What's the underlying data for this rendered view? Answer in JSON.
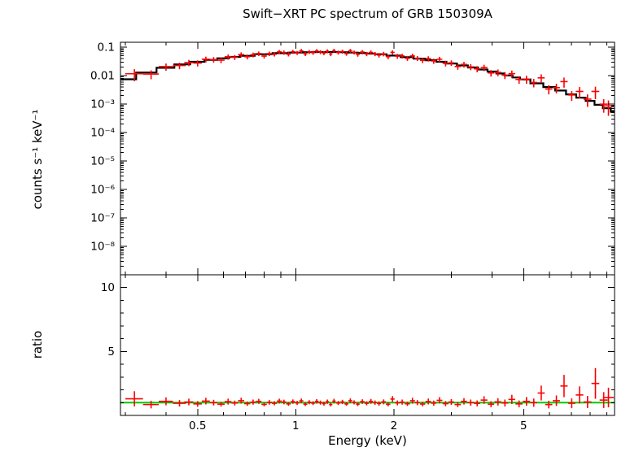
{
  "chart_data": {
    "type": "scatter",
    "title": "Swift−XRT PC spectrum of GRB 150309A",
    "xlabel": "Energy (keV)",
    "ylabel_top": "counts s⁻¹ keV⁻¹",
    "ylabel_bottom": "ratio",
    "xscale": "log",
    "top_yscale": "log",
    "xlim": [
      0.29,
      9.5
    ],
    "top_ylim": [
      1e-09,
      0.15
    ],
    "bottom_ylim": [
      0,
      11
    ],
    "grid": "off",
    "legend": "none",
    "xticks": {
      "values": [
        0.5,
        1,
        2,
        5
      ],
      "labels": [
        "0.5",
        "1",
        "2",
        "5"
      ]
    },
    "top_yticks": {
      "values": [
        0.1,
        0.01,
        0.001,
        0.0001,
        1e-05,
        1e-06,
        1e-07,
        1e-08
      ],
      "labels": [
        "0.1",
        "0.01",
        "10⁻³",
        "10⁻⁴",
        "10⁻⁵",
        "10⁻⁶",
        "10⁻⁷",
        "10⁻⁸"
      ]
    },
    "bottom_yticks": {
      "values": [
        10,
        5
      ],
      "labels": [
        "10",
        "5"
      ]
    },
    "reference_ratio": 1.0,
    "colors": {
      "data": "#ff0000",
      "model": "#000000",
      "reference": "#00cc00",
      "axes": "#000000"
    },
    "columns": [
      "energy_keV",
      "energy_halfwidth_keV",
      "rate_counts_s_keV",
      "rate_err",
      "ratio",
      "ratio_err"
    ],
    "points": [
      [
        0.32,
        0.02,
        0.0117,
        0.0053,
        1.3,
        0.59
      ],
      [
        0.36,
        0.02,
        0.0115,
        0.004,
        0.85,
        0.3
      ],
      [
        0.4,
        0.02,
        0.0209,
        0.0059,
        1.1,
        0.31
      ],
      [
        0.44,
        0.02,
        0.0228,
        0.0059,
        0.95,
        0.25
      ],
      [
        0.47,
        0.015,
        0.0289,
        0.0072,
        1.05,
        0.26
      ],
      [
        0.5,
        0.015,
        0.0279,
        0.0067,
        0.9,
        0.22
      ],
      [
        0.53,
        0.015,
        0.0381,
        0.0088,
        1.12,
        0.26
      ],
      [
        0.56,
        0.015,
        0.037,
        0.0081,
        1.0,
        0.22
      ],
      [
        0.59,
        0.015,
        0.0352,
        0.0077,
        0.88,
        0.19
      ],
      [
        0.62,
        0.015,
        0.0464,
        0.0097,
        1.08,
        0.23
      ],
      [
        0.65,
        0.015,
        0.0446,
        0.0089,
        0.97,
        0.19
      ],
      [
        0.68,
        0.015,
        0.0552,
        0.011,
        1.15,
        0.23
      ],
      [
        0.71,
        0.015,
        0.0465,
        0.0088,
        0.92,
        0.17
      ],
      [
        0.74,
        0.015,
        0.0546,
        0.0104,
        1.04,
        0.2
      ],
      [
        0.77,
        0.015,
        0.06,
        0.0108,
        1.1,
        0.2
      ],
      [
        0.8,
        0.015,
        0.049,
        0.0088,
        0.86,
        0.15
      ],
      [
        0.83,
        0.015,
        0.0597,
        0.0107,
        1.02,
        0.18
      ],
      [
        0.86,
        0.015,
        0.057,
        0.0097,
        0.95,
        0.16
      ],
      [
        0.89,
        0.015,
        0.0689,
        0.0117,
        1.12,
        0.19
      ],
      [
        0.92,
        0.015,
        0.0656,
        0.0112,
        1.05,
        0.18
      ],
      [
        0.95,
        0.015,
        0.0572,
        0.0097,
        0.9,
        0.15
      ],
      [
        0.98,
        0.015,
        0.0697,
        0.0111,
        1.08,
        0.17
      ],
      [
        1.01,
        0.015,
        0.0637,
        0.0102,
        0.98,
        0.16
      ],
      [
        1.04,
        0.015,
        0.075,
        0.012,
        1.14,
        0.18
      ],
      [
        1.07,
        0.015,
        0.0584,
        0.0094,
        0.88,
        0.14
      ],
      [
        1.1,
        0.015,
        0.069,
        0.011,
        1.03,
        0.16
      ],
      [
        1.13,
        0.015,
        0.0647,
        0.0104,
        0.96,
        0.15
      ],
      [
        1.16,
        0.015,
        0.0745,
        0.0119,
        1.1,
        0.18
      ],
      [
        1.19,
        0.015,
        0.0679,
        0.0109,
        1.0,
        0.16
      ],
      [
        1.22,
        0.015,
        0.0626,
        0.01,
        0.92,
        0.15
      ],
      [
        1.25,
        0.015,
        0.0728,
        0.0116,
        1.07,
        0.17
      ],
      [
        1.28,
        0.015,
        0.0578,
        0.0092,
        0.85,
        0.14
      ],
      [
        1.31,
        0.015,
        0.0762,
        0.0122,
        1.12,
        0.18
      ],
      [
        1.35,
        0.02,
        0.0658,
        0.0105,
        0.97,
        0.16
      ],
      [
        1.39,
        0.02,
        0.0706,
        0.0113,
        1.05,
        0.17
      ],
      [
        1.43,
        0.02,
        0.0599,
        0.0096,
        0.9,
        0.14
      ],
      [
        1.47,
        0.02,
        0.0754,
        0.0121,
        1.15,
        0.18
      ],
      [
        1.51,
        0.02,
        0.0661,
        0.0106,
        1.02,
        0.16
      ],
      [
        1.55,
        0.02,
        0.0561,
        0.0095,
        0.88,
        0.15
      ],
      [
        1.6,
        0.025,
        0.068,
        0.0116,
        1.08,
        0.18
      ],
      [
        1.65,
        0.025,
        0.0584,
        0.0099,
        0.95,
        0.16
      ],
      [
        1.7,
        0.025,
        0.066,
        0.0112,
        1.1,
        0.19
      ],
      [
        1.75,
        0.025,
        0.0585,
        0.0099,
        1.0,
        0.17
      ],
      [
        1.8,
        0.025,
        0.053,
        0.0095,
        0.93,
        0.17
      ],
      [
        1.86,
        0.03,
        0.0585,
        0.0105,
        1.06,
        0.19
      ],
      [
        1.92,
        0.03,
        0.0465,
        0.0084,
        0.87,
        0.16
      ],
      [
        1.98,
        0.03,
        0.0662,
        0.0119,
        1.28,
        0.23
      ],
      [
        2.05,
        0.035,
        0.0487,
        0.0093,
        0.98,
        0.19
      ],
      [
        2.12,
        0.035,
        0.0496,
        0.0094,
        1.04,
        0.2
      ],
      [
        2.2,
        0.04,
        0.041,
        0.0078,
        0.91,
        0.17
      ],
      [
        2.28,
        0.04,
        0.0497,
        0.0099,
        1.15,
        0.23
      ],
      [
        2.36,
        0.04,
        0.0412,
        0.0082,
        1.0,
        0.2
      ],
      [
        2.45,
        0.045,
        0.0347,
        0.0069,
        0.89,
        0.18
      ],
      [
        2.55,
        0.05,
        0.0399,
        0.0084,
        1.09,
        0.23
      ],
      [
        2.65,
        0.05,
        0.033,
        0.0069,
        0.96,
        0.2
      ],
      [
        2.76,
        0.055,
        0.038,
        0.008,
        1.18,
        0.25
      ],
      [
        2.88,
        0.06,
        0.0273,
        0.006,
        0.92,
        0.2
      ],
      [
        3.0,
        0.06,
        0.0284,
        0.0062,
        1.05,
        0.23
      ],
      [
        3.14,
        0.07,
        0.0211,
        0.0049,
        0.85,
        0.2
      ],
      [
        3.28,
        0.07,
        0.025,
        0.0057,
        1.1,
        0.25
      ],
      [
        3.44,
        0.08,
        0.0205,
        0.0049,
        1.0,
        0.24
      ],
      [
        3.6,
        0.08,
        0.0174,
        0.0042,
        0.94,
        0.23
      ],
      [
        3.78,
        0.09,
        0.0194,
        0.0049,
        1.2,
        0.3
      ],
      [
        3.97,
        0.09,
        0.0125,
        0.0032,
        0.88,
        0.23
      ],
      [
        4.17,
        0.1,
        0.0131,
        0.0035,
        1.06,
        0.29
      ],
      [
        4.38,
        0.1,
        0.0105,
        0.0029,
        0.97,
        0.27
      ],
      [
        4.6,
        0.11,
        0.0118,
        0.0034,
        1.25,
        0.36
      ],
      [
        4.84,
        0.12,
        0.0074,
        0.0022,
        0.9,
        0.27
      ],
      [
        5.1,
        0.13,
        0.0076,
        0.0024,
        1.1,
        0.34
      ],
      [
        5.37,
        0.13,
        0.0058,
        0.0019,
        1.0,
        0.32
      ],
      [
        5.66,
        0.14,
        0.0084,
        0.0028,
        1.75,
        0.58
      ],
      [
        5.97,
        0.15,
        0.0034,
        0.0012,
        0.85,
        0.3
      ],
      [
        6.3,
        0.16,
        0.0038,
        0.0014,
        1.15,
        0.41
      ],
      [
        6.65,
        0.17,
        0.0062,
        0.0024,
        2.3,
        0.87
      ],
      [
        7.02,
        0.18,
        0.0021,
        0.0008,
        0.95,
        0.38
      ],
      [
        7.42,
        0.2,
        0.0028,
        0.0012,
        1.6,
        0.67
      ],
      [
        7.85,
        0.22,
        0.0015,
        0.0007,
        1.05,
        0.47
      ],
      [
        8.3,
        0.23,
        0.0028,
        0.0013,
        2.5,
        1.2
      ],
      [
        8.8,
        0.25,
        0.001,
        0.0005,
        1.2,
        0.62
      ],
      [
        9.1,
        0.35,
        0.00087,
        0.00048,
        1.4,
        0.77
      ]
    ],
    "model_step": [
      [
        0.3,
        0.0075
      ],
      [
        0.35,
        0.013
      ],
      [
        0.4,
        0.019
      ],
      [
        0.45,
        0.025
      ],
      [
        0.5,
        0.031
      ],
      [
        0.55,
        0.036
      ],
      [
        0.6,
        0.041
      ],
      [
        0.65,
        0.046
      ],
      [
        0.7,
        0.05
      ],
      [
        0.8,
        0.057
      ],
      [
        0.9,
        0.062
      ],
      [
        1.0,
        0.065
      ],
      [
        1.1,
        0.067
      ],
      [
        1.2,
        0.068
      ],
      [
        1.3,
        0.068
      ],
      [
        1.4,
        0.067
      ],
      [
        1.5,
        0.065
      ],
      [
        1.6,
        0.063
      ],
      [
        1.7,
        0.06
      ],
      [
        1.8,
        0.057
      ],
      [
        2.0,
        0.051
      ],
      [
        2.2,
        0.045
      ],
      [
        2.4,
        0.04
      ],
      [
        2.6,
        0.035
      ],
      [
        2.8,
        0.031
      ],
      [
        3.0,
        0.027
      ],
      [
        3.25,
        0.023
      ],
      [
        3.5,
        0.0195
      ],
      [
        3.75,
        0.0165
      ],
      [
        4.0,
        0.014
      ],
      [
        4.25,
        0.012
      ],
      [
        4.5,
        0.0102
      ],
      [
        4.75,
        0.0087
      ],
      [
        5.0,
        0.0074
      ],
      [
        5.5,
        0.0054
      ],
      [
        6.0,
        0.004
      ],
      [
        6.5,
        0.003
      ],
      [
        7.0,
        0.0022
      ],
      [
        7.5,
        0.0017
      ],
      [
        8.0,
        0.0013
      ],
      [
        8.5,
        0.00095
      ],
      [
        9.0,
        0.00072
      ],
      [
        9.5,
        0.00054
      ]
    ]
  }
}
